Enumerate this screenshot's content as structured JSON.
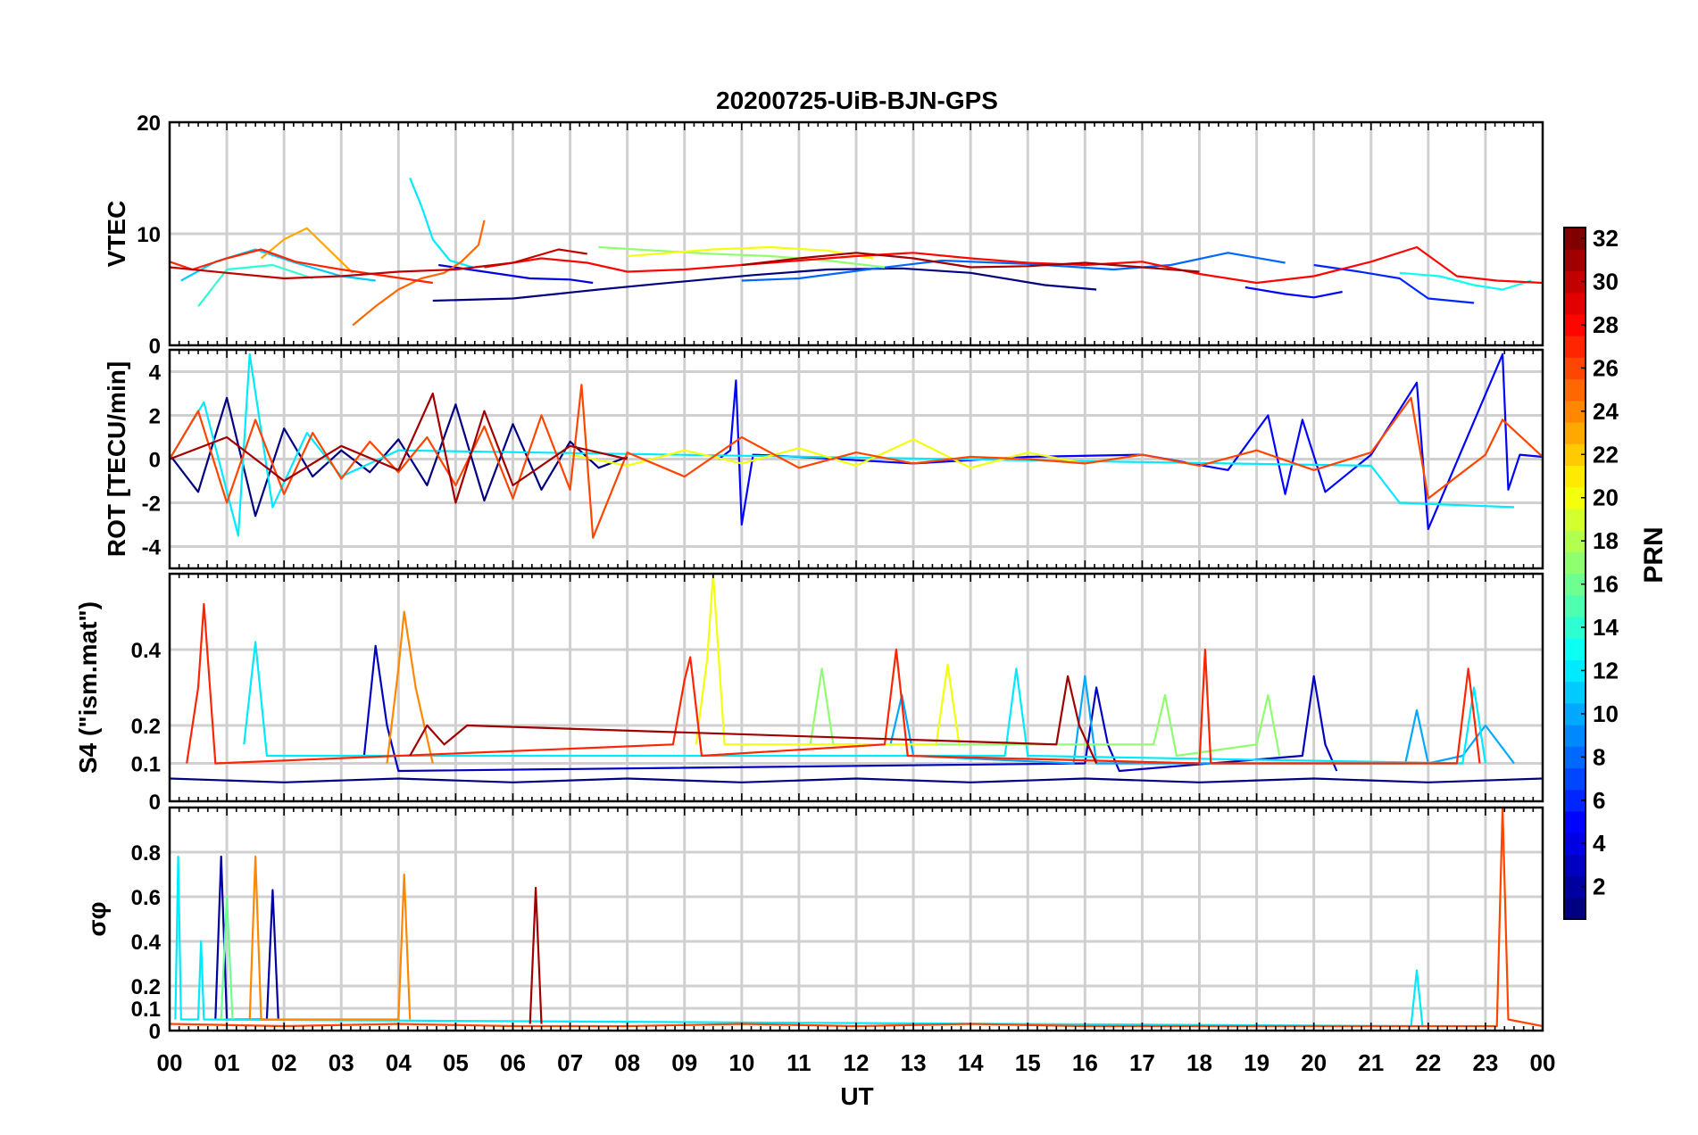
{
  "figure": {
    "title": "20200725-UiB-BJN-GPS",
    "xlabel": "UT",
    "x_tick_labels": [
      "00",
      "01",
      "02",
      "03",
      "04",
      "05",
      "06",
      "07",
      "08",
      "09",
      "10",
      "11",
      "12",
      "13",
      "14",
      "15",
      "16",
      "17",
      "18",
      "19",
      "20",
      "21",
      "22",
      "23",
      "00"
    ],
    "colorbar": {
      "label": "PRN",
      "range": [
        1,
        32
      ],
      "tick_labels": [
        "2",
        "4",
        "6",
        "8",
        "10",
        "12",
        "14",
        "16",
        "18",
        "20",
        "22",
        "24",
        "26",
        "28",
        "30",
        "32"
      ],
      "colormap": "jet"
    }
  },
  "chart_data": [
    {
      "type": "line",
      "ylabel": "VTEC",
      "xlim": [
        0,
        24
      ],
      "ylim": [
        0,
        20
      ],
      "y_tick_labels": [
        "0",
        "10",
        "20"
      ],
      "grid": true,
      "series": [
        {
          "prn": 1,
          "x": [
            4.6,
            6.0,
            7.5,
            8.5,
            10.2,
            11.5,
            12.8,
            14.0,
            15.3,
            16.2
          ],
          "y": [
            4.0,
            4.2,
            5.0,
            5.5,
            6.3,
            6.8,
            6.9,
            6.5,
            5.4,
            5.0
          ]
        },
        {
          "prn": 4,
          "x": [
            4.7,
            5.5,
            6.3,
            7.0,
            7.4
          ],
          "y": [
            7.2,
            6.6,
            6.0,
            5.9,
            5.6
          ]
        },
        {
          "prn": 5,
          "x": [
            18.8,
            19.5,
            20.0,
            20.5
          ],
          "y": [
            5.2,
            4.6,
            4.3,
            4.8
          ]
        },
        {
          "prn": 6,
          "x": [
            20.0,
            20.8,
            21.5,
            22.0,
            22.8
          ],
          "y": [
            7.2,
            6.6,
            6.0,
            4.2,
            3.8
          ]
        },
        {
          "prn": 8,
          "x": [
            10.0,
            11.0,
            12.2,
            13.5,
            15.0,
            16.5,
            17.5,
            18.5,
            19.5
          ],
          "y": [
            5.8,
            6.0,
            6.8,
            7.6,
            7.3,
            6.8,
            7.2,
            8.3,
            7.4
          ]
        },
        {
          "prn": 11,
          "x": [
            0.2,
            0.8,
            1.5,
            2.2,
            3.0,
            3.6
          ],
          "y": [
            5.8,
            7.5,
            8.6,
            7.4,
            6.2,
            5.8
          ]
        },
        {
          "prn": 12,
          "x": [
            4.2,
            4.4,
            4.6,
            4.9,
            5.3
          ],
          "y": [
            15.0,
            12.5,
            9.5,
            7.6,
            7.0
          ]
        },
        {
          "prn": 13,
          "x": [
            21.5,
            22.2,
            22.8,
            23.3,
            23.8
          ],
          "y": [
            6.5,
            6.2,
            5.4,
            5.0,
            5.8
          ]
        },
        {
          "prn": 14,
          "x": [
            0.5,
            1.0,
            1.8,
            2.5
          ],
          "y": [
            3.5,
            6.8,
            7.2,
            6.0
          ]
        },
        {
          "prn": 17,
          "x": [
            7.5,
            8.5,
            9.5,
            10.5,
            11.5,
            12.5
          ],
          "y": [
            8.8,
            8.5,
            8.2,
            8.0,
            7.6,
            7.0
          ]
        },
        {
          "prn": 20,
          "x": [
            8.0,
            9.5,
            10.5,
            11.5,
            12.3
          ],
          "y": [
            8.0,
            8.6,
            8.8,
            8.5,
            7.8
          ]
        },
        {
          "prn": 23,
          "x": [
            1.6,
            2.0,
            2.4,
            2.8,
            3.2
          ],
          "y": [
            7.8,
            9.5,
            10.5,
            8.5,
            6.5
          ]
        },
        {
          "prn": 25,
          "x": [
            3.2,
            3.6,
            4.0,
            4.4,
            4.8,
            5.1,
            5.4,
            5.5
          ],
          "y": [
            1.8,
            3.5,
            5.0,
            6.0,
            6.5,
            7.5,
            9.0,
            11.2
          ]
        },
        {
          "prn": 27,
          "x": [
            0.0,
            0.4,
            1.0,
            1.6,
            2.2,
            3.0,
            3.8,
            4.6
          ],
          "y": [
            7.5,
            6.8,
            7.8,
            8.6,
            7.5,
            6.8,
            6.2,
            5.6
          ]
        },
        {
          "prn": 28,
          "x": [
            5.5,
            6.5,
            7.3,
            8.0,
            9.0,
            10.0,
            11.0,
            12.0,
            13.0,
            14.0,
            15.0,
            16.0,
            17.0,
            18.0,
            19.0,
            20.0,
            21.0,
            21.8,
            22.5,
            23.2,
            24.0
          ],
          "y": [
            7.0,
            7.8,
            7.4,
            6.6,
            6.8,
            7.2,
            7.6,
            8.0,
            8.3,
            7.8,
            7.4,
            7.2,
            7.5,
            6.4,
            5.6,
            6.2,
            7.5,
            8.8,
            6.2,
            5.8,
            5.6
          ]
        },
        {
          "prn": 30,
          "x": [
            0.0,
            1.0,
            2.0,
            3.0,
            4.0,
            5.0,
            6.0,
            6.8,
            7.3
          ],
          "y": [
            7.0,
            6.5,
            6.0,
            6.2,
            6.6,
            6.8,
            7.4,
            8.6,
            8.2
          ]
        },
        {
          "prn": 31,
          "x": [
            10.0,
            11.0,
            12.0,
            13.0,
            14.0,
            15.0,
            16.0,
            17.0,
            18.0
          ],
          "y": [
            7.2,
            7.8,
            8.3,
            7.8,
            7.0,
            7.1,
            7.4,
            7.0,
            6.6
          ]
        }
      ]
    },
    {
      "type": "line",
      "ylabel": "ROT [TECU/min]",
      "xlim": [
        0,
        24
      ],
      "ylim": [
        -5,
        5
      ],
      "y_tick_labels": [
        "-4",
        "-2",
        "0",
        "2",
        "4"
      ],
      "grid": true,
      "series": [
        {
          "prn": 1,
          "x": [
            0.0,
            0.5,
            1.0,
            1.5,
            2.0,
            2.5,
            3.0,
            3.5,
            4.0,
            4.5,
            5.0,
            5.5,
            6.0,
            6.5,
            7.0,
            7.5,
            8.0
          ],
          "y": [
            0.2,
            -1.5,
            2.8,
            -2.6,
            1.4,
            -0.8,
            0.4,
            -0.6,
            0.9,
            -1.2,
            2.5,
            -1.9,
            1.6,
            -1.4,
            0.8,
            -0.4,
            0.1
          ]
        },
        {
          "prn": 5,
          "x": [
            9.6,
            9.8,
            9.9,
            10.0,
            10.2,
            11.0,
            13.0,
            15.0,
            17.0,
            18.5,
            19.2,
            19.5,
            19.8,
            20.2,
            21.0,
            21.8,
            22.0,
            23.3,
            23.4,
            23.6,
            24.0
          ],
          "y": [
            0.0,
            0.4,
            3.6,
            -3.0,
            0.2,
            0.1,
            -0.2,
            0.1,
            0.2,
            -0.5,
            2.0,
            -1.6,
            1.8,
            -1.5,
            0.2,
            3.5,
            -3.2,
            4.8,
            -1.4,
            0.2,
            0.1
          ]
        },
        {
          "prn": 12,
          "x": [
            0.0,
            0.6,
            1.2,
            1.4,
            1.8,
            2.4,
            3.0,
            4.0,
            21.0,
            21.5,
            23.5
          ],
          "y": [
            0.0,
            2.6,
            -3.5,
            4.8,
            -2.2,
            1.2,
            -0.8,
            0.4,
            -0.3,
            -2.0,
            -2.2
          ]
        },
        {
          "prn": 20,
          "x": [
            7.0,
            8.0,
            9.0,
            10.0,
            11.0,
            12.0,
            13.0,
            14.0,
            15.0,
            16.0,
            17.0
          ],
          "y": [
            0.2,
            -0.3,
            0.4,
            -0.2,
            0.5,
            -0.3,
            0.9,
            -0.4,
            0.3,
            -0.2,
            0.2
          ]
        },
        {
          "prn": 26,
          "x": [
            0.0,
            0.5,
            1.0,
            1.5,
            2.0,
            2.5,
            3.0,
            3.5,
            4.0,
            4.5,
            5.0,
            5.5,
            6.0,
            6.5,
            7.0,
            7.2,
            7.4,
            8.0,
            9.0,
            10.0,
            11.0,
            12.0,
            13.0,
            14.0,
            15.0,
            16.0,
            17.0,
            18.0,
            19.0,
            20.0,
            21.0,
            21.7,
            22.0,
            23.0,
            23.3,
            24.0
          ],
          "y": [
            0.0,
            2.2,
            -2.0,
            1.8,
            -1.6,
            1.2,
            -0.9,
            0.8,
            -0.6,
            1.0,
            -1.2,
            1.5,
            -1.8,
            2.0,
            -1.4,
            3.4,
            -3.6,
            0.3,
            -0.8,
            1.0,
            -0.4,
            0.3,
            -0.2,
            0.1,
            0.0,
            -0.2,
            0.2,
            -0.3,
            0.4,
            -0.5,
            0.3,
            2.8,
            -1.8,
            0.2,
            1.8,
            0.1
          ]
        },
        {
          "prn": 31,
          "x": [
            0.0,
            1.0,
            2.0,
            3.0,
            4.0,
            4.6,
            5.0,
            5.5,
            6.0,
            7.0,
            8.0
          ],
          "y": [
            0.0,
            1.0,
            -1.0,
            0.6,
            -0.5,
            3.0,
            -2.0,
            2.2,
            -1.2,
            0.6,
            0.0
          ]
        }
      ]
    },
    {
      "type": "line",
      "ylabel": "S4 (\"ism.mat\")",
      "xlim": [
        0,
        24
      ],
      "ylim": [
        0,
        0.6
      ],
      "y_tick_labels": [
        "0",
        "0.1",
        "0.2",
        "0.4"
      ],
      "grid": true,
      "series": [
        {
          "prn": 1,
          "x": [
            0.0,
            2.0,
            4.0,
            6.0,
            8.0,
            10.0,
            12.0,
            14.0,
            16.0,
            18.0,
            20.0,
            22.0,
            24.0
          ],
          "y": [
            0.06,
            0.05,
            0.06,
            0.05,
            0.06,
            0.05,
            0.06,
            0.05,
            0.06,
            0.05,
            0.06,
            0.05,
            0.06
          ]
        },
        {
          "prn": 3,
          "x": [
            3.4,
            3.6,
            3.8,
            4.0,
            16.0,
            16.2,
            16.4,
            16.6,
            19.8,
            20.0,
            20.2,
            20.4
          ],
          "y": [
            0.12,
            0.41,
            0.2,
            0.08,
            0.1,
            0.3,
            0.15,
            0.08,
            0.12,
            0.33,
            0.15,
            0.08
          ]
        },
        {
          "prn": 10,
          "x": [
            12.6,
            12.8,
            13.0,
            15.8,
            16.0,
            16.2,
            21.6,
            21.8,
            22.0,
            22.6,
            23.0,
            23.5
          ],
          "y": [
            0.15,
            0.28,
            0.12,
            0.1,
            0.33,
            0.1,
            0.1,
            0.24,
            0.1,
            0.12,
            0.2,
            0.1
          ]
        },
        {
          "prn": 12,
          "x": [
            1.3,
            1.5,
            1.7,
            14.6,
            14.8,
            15.0,
            22.6,
            22.8,
            23.0
          ],
          "y": [
            0.15,
            0.42,
            0.12,
            0.12,
            0.35,
            0.12,
            0.1,
            0.3,
            0.1
          ]
        },
        {
          "prn": 17,
          "x": [
            11.2,
            11.4,
            11.6,
            17.2,
            17.4,
            17.6,
            19.0,
            19.2,
            19.4
          ],
          "y": [
            0.15,
            0.35,
            0.15,
            0.15,
            0.28,
            0.12,
            0.15,
            0.28,
            0.12
          ]
        },
        {
          "prn": 20,
          "x": [
            9.2,
            9.4,
            9.5,
            9.7,
            13.4,
            13.6,
            13.8
          ],
          "y": [
            0.15,
            0.38,
            0.6,
            0.15,
            0.15,
            0.36,
            0.15
          ]
        },
        {
          "prn": 24,
          "x": [
            3.8,
            4.0,
            4.1,
            4.3,
            4.6
          ],
          "y": [
            0.1,
            0.35,
            0.5,
            0.3,
            0.1
          ]
        },
        {
          "prn": 27,
          "x": [
            0.3,
            0.5,
            0.6,
            0.8,
            8.8,
            9.0,
            9.1,
            9.3,
            12.5,
            12.7,
            12.9,
            18.0,
            18.1,
            18.2,
            22.5,
            22.7,
            22.9
          ],
          "y": [
            0.1,
            0.3,
            0.52,
            0.1,
            0.15,
            0.32,
            0.38,
            0.12,
            0.15,
            0.4,
            0.12,
            0.1,
            0.4,
            0.1,
            0.1,
            0.35,
            0.1
          ]
        },
        {
          "prn": 31,
          "x": [
            4.2,
            4.5,
            4.8,
            5.2,
            15.5,
            15.7,
            15.9,
            16.2
          ],
          "y": [
            0.12,
            0.2,
            0.15,
            0.2,
            0.15,
            0.33,
            0.2,
            0.1
          ]
        }
      ]
    },
    {
      "type": "line",
      "ylabel": "σφ",
      "xlim": [
        0,
        24
      ],
      "ylim": [
        0,
        1
      ],
      "y_tick_labels": [
        "0",
        "0.1",
        "0.2",
        "0.4",
        "0.6",
        "0.8"
      ],
      "grid": true,
      "series": [
        {
          "prn": 2,
          "x": [
            0.8,
            0.9,
            1.0,
            1.7,
            1.8,
            1.9
          ],
          "y": [
            0.05,
            0.78,
            0.05,
            0.05,
            0.63,
            0.05
          ]
        },
        {
          "prn": 12,
          "x": [
            0.1,
            0.15,
            0.2,
            0.5,
            0.55,
            0.6,
            21.7,
            21.8,
            21.9
          ],
          "y": [
            0.05,
            0.78,
            0.05,
            0.05,
            0.4,
            0.05,
            0.02,
            0.27,
            0.02
          ]
        },
        {
          "prn": 16,
          "x": [
            0.9,
            1.0,
            1.1
          ],
          "y": [
            0.05,
            0.6,
            0.05
          ]
        },
        {
          "prn": 24,
          "x": [
            1.4,
            1.5,
            1.6,
            4.0,
            4.1,
            4.2
          ],
          "y": [
            0.05,
            0.78,
            0.05,
            0.05,
            0.7,
            0.05
          ]
        },
        {
          "prn": 26,
          "x": [
            0.0,
            2.0,
            4.0,
            6.0,
            8.0,
            10.0,
            12.0,
            14.0,
            16.0,
            18.0,
            20.0,
            22.0,
            23.2,
            23.3,
            23.4,
            24.0
          ],
          "y": [
            0.03,
            0.02,
            0.03,
            0.02,
            0.02,
            0.03,
            0.02,
            0.03,
            0.02,
            0.02,
            0.02,
            0.02,
            0.02,
            1.0,
            0.05,
            0.02
          ]
        },
        {
          "prn": 31,
          "x": [
            6.3,
            6.4,
            6.5
          ],
          "y": [
            0.03,
            0.64,
            0.03
          ]
        }
      ]
    }
  ]
}
